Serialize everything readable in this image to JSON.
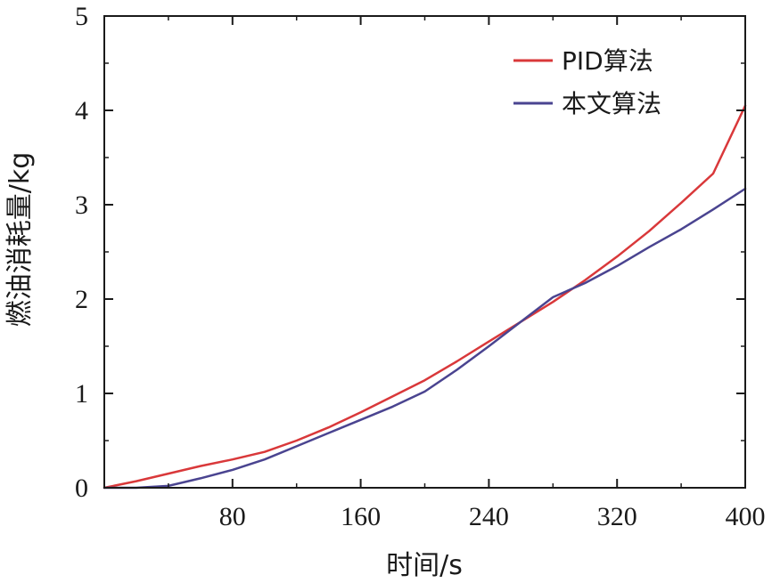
{
  "chart_data": {
    "type": "line",
    "title": "",
    "xlabel": "时间/s",
    "ylabel": "燃油消耗量/kg",
    "xlim": [
      0,
      400
    ],
    "ylim": [
      0,
      5
    ],
    "xticks": [
      80,
      160,
      240,
      320,
      400
    ],
    "xtick_labels": [
      "80",
      "160",
      "240",
      "320",
      "400"
    ],
    "yticks": [
      0,
      1,
      2,
      3,
      4,
      5
    ],
    "ytick_labels": [
      "0",
      "1",
      "2",
      "3",
      "4",
      "5"
    ],
    "grid": false,
    "legend_position": "top-right",
    "series": [
      {
        "name": "PID算法",
        "color": "#d9383a",
        "x": [
          0,
          20,
          40,
          60,
          80,
          100,
          120,
          140,
          160,
          180,
          200,
          220,
          240,
          260,
          280,
          300,
          320,
          340,
          360,
          380,
          400
        ],
        "y": [
          0,
          0.07,
          0.15,
          0.23,
          0.3,
          0.38,
          0.5,
          0.64,
          0.8,
          0.97,
          1.14,
          1.34,
          1.55,
          1.76,
          1.97,
          2.2,
          2.45,
          2.72,
          3.02,
          3.33,
          4.05
        ]
      },
      {
        "name": "本文算法",
        "color": "#4a4490",
        "x": [
          0,
          20,
          40,
          60,
          80,
          100,
          120,
          140,
          160,
          180,
          200,
          220,
          240,
          260,
          280,
          300,
          320,
          340,
          360,
          380,
          400
        ],
        "y": [
          0,
          0,
          0.02,
          0.1,
          0.19,
          0.3,
          0.44,
          0.58,
          0.72,
          0.86,
          1.02,
          1.25,
          1.5,
          1.76,
          2.02,
          2.17,
          2.35,
          2.55,
          2.74,
          2.95,
          3.17
        ]
      }
    ]
  }
}
